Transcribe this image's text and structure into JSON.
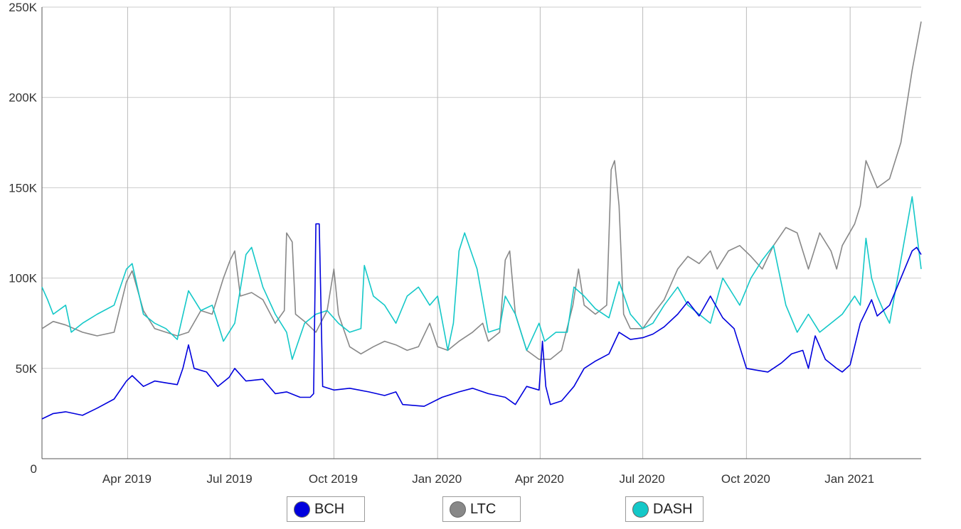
{
  "chart_data": {
    "type": "line",
    "x_ticks": [
      "Apr 2019",
      "Jul 2019",
      "Oct 2019",
      "Jan 2020",
      "Apr 2020",
      "Jul 2020",
      "Oct 2020",
      "Jan 2021"
    ],
    "y_ticks": [
      "0",
      "50K",
      "100K",
      "150K",
      "200K",
      "250K"
    ],
    "ylim": [
      0,
      250000
    ],
    "xlim": [
      "2019-01-15",
      "2021-03-05"
    ],
    "grid": true,
    "legend_position": "bottom",
    "series": [
      {
        "name": "BCH",
        "color": "#0000dd",
        "points": [
          [
            "2019-01-15",
            22000
          ],
          [
            "2019-01-25",
            25000
          ],
          [
            "2019-02-05",
            26000
          ],
          [
            "2019-02-20",
            24000
          ],
          [
            "2019-03-05",
            28000
          ],
          [
            "2019-03-20",
            33000
          ],
          [
            "2019-03-31",
            43000
          ],
          [
            "2019-04-05",
            46000
          ],
          [
            "2019-04-15",
            40000
          ],
          [
            "2019-04-25",
            43000
          ],
          [
            "2019-05-05",
            42000
          ],
          [
            "2019-05-15",
            41000
          ],
          [
            "2019-05-20",
            50000
          ],
          [
            "2019-05-25",
            63000
          ],
          [
            "2019-05-30",
            50000
          ],
          [
            "2019-06-10",
            48000
          ],
          [
            "2019-06-20",
            40000
          ],
          [
            "2019-06-30",
            45000
          ],
          [
            "2019-07-05",
            50000
          ],
          [
            "2019-07-15",
            43000
          ],
          [
            "2019-07-30",
            44000
          ],
          [
            "2019-08-10",
            36000
          ],
          [
            "2019-08-20",
            37000
          ],
          [
            "2019-09-01",
            34000
          ],
          [
            "2019-09-10",
            34000
          ],
          [
            "2019-09-13",
            36000
          ],
          [
            "2019-09-15",
            130000
          ],
          [
            "2019-09-18",
            130000
          ],
          [
            "2019-09-21",
            40000
          ],
          [
            "2019-10-01",
            38000
          ],
          [
            "2019-10-15",
            39000
          ],
          [
            "2019-11-01",
            37000
          ],
          [
            "2019-11-15",
            35000
          ],
          [
            "2019-11-25",
            37000
          ],
          [
            "2019-12-01",
            30000
          ],
          [
            "2019-12-20",
            29000
          ],
          [
            "2020-01-05",
            34000
          ],
          [
            "2020-01-20",
            37000
          ],
          [
            "2020-02-01",
            39000
          ],
          [
            "2020-02-15",
            36000
          ],
          [
            "2020-03-01",
            34000
          ],
          [
            "2020-03-10",
            30000
          ],
          [
            "2020-03-20",
            40000
          ],
          [
            "2020-03-31",
            38000
          ],
          [
            "2020-04-03",
            65000
          ],
          [
            "2020-04-06",
            40000
          ],
          [
            "2020-04-10",
            30000
          ],
          [
            "2020-04-20",
            32000
          ],
          [
            "2020-05-01",
            40000
          ],
          [
            "2020-05-10",
            50000
          ],
          [
            "2020-05-20",
            54000
          ],
          [
            "2020-06-01",
            58000
          ],
          [
            "2020-06-10",
            70000
          ],
          [
            "2020-06-20",
            66000
          ],
          [
            "2020-07-01",
            67000
          ],
          [
            "2020-07-10",
            69000
          ],
          [
            "2020-07-20",
            73000
          ],
          [
            "2020-08-01",
            80000
          ],
          [
            "2020-08-10",
            87000
          ],
          [
            "2020-08-20",
            79000
          ],
          [
            "2020-08-30",
            90000
          ],
          [
            "2020-09-10",
            78000
          ],
          [
            "2020-09-20",
            72000
          ],
          [
            "2020-09-25",
            62000
          ],
          [
            "2020-10-01",
            50000
          ],
          [
            "2020-10-10",
            49000
          ],
          [
            "2020-10-20",
            48000
          ],
          [
            "2020-11-01",
            53000
          ],
          [
            "2020-11-10",
            58000
          ],
          [
            "2020-11-20",
            60000
          ],
          [
            "2020-11-25",
            50000
          ],
          [
            "2020-12-01",
            68000
          ],
          [
            "2020-12-10",
            55000
          ],
          [
            "2020-12-20",
            50000
          ],
          [
            "2020-12-25",
            48000
          ],
          [
            "2021-01-01",
            52000
          ],
          [
            "2021-01-10",
            75000
          ],
          [
            "2021-01-20",
            88000
          ],
          [
            "2021-01-25",
            79000
          ],
          [
            "2021-02-05",
            85000
          ],
          [
            "2021-02-15",
            100000
          ],
          [
            "2021-02-25",
            115000
          ],
          [
            "2021-03-01",
            117000
          ],
          [
            "2021-03-05",
            113000
          ]
        ]
      },
      {
        "name": "LTC",
        "color": "#888888",
        "points": [
          [
            "2019-01-15",
            72000
          ],
          [
            "2019-01-25",
            76000
          ],
          [
            "2019-02-05",
            74000
          ],
          [
            "2019-02-20",
            70000
          ],
          [
            "2019-03-05",
            68000
          ],
          [
            "2019-03-20",
            70000
          ],
          [
            "2019-03-31",
            98000
          ],
          [
            "2019-04-05",
            104000
          ],
          [
            "2019-04-15",
            82000
          ],
          [
            "2019-04-25",
            72000
          ],
          [
            "2019-05-05",
            70000
          ],
          [
            "2019-05-15",
            68000
          ],
          [
            "2019-05-25",
            70000
          ],
          [
            "2019-06-05",
            82000
          ],
          [
            "2019-06-15",
            80000
          ],
          [
            "2019-06-25",
            100000
          ],
          [
            "2019-07-01",
            110000
          ],
          [
            "2019-07-05",
            115000
          ],
          [
            "2019-07-10",
            90000
          ],
          [
            "2019-07-20",
            92000
          ],
          [
            "2019-07-30",
            88000
          ],
          [
            "2019-08-10",
            75000
          ],
          [
            "2019-08-18",
            82000
          ],
          [
            "2019-08-20",
            125000
          ],
          [
            "2019-08-25",
            120000
          ],
          [
            "2019-08-28",
            80000
          ],
          [
            "2019-09-05",
            76000
          ],
          [
            "2019-09-15",
            70000
          ],
          [
            "2019-09-25",
            82000
          ],
          [
            "2019-10-01",
            105000
          ],
          [
            "2019-10-05",
            80000
          ],
          [
            "2019-10-15",
            62000
          ],
          [
            "2019-10-25",
            58000
          ],
          [
            "2019-11-05",
            62000
          ],
          [
            "2019-11-15",
            65000
          ],
          [
            "2019-11-25",
            63000
          ],
          [
            "2019-12-05",
            60000
          ],
          [
            "2019-12-15",
            62000
          ],
          [
            "2019-12-25",
            75000
          ],
          [
            "2020-01-01",
            62000
          ],
          [
            "2020-01-10",
            60000
          ],
          [
            "2020-01-20",
            65000
          ],
          [
            "2020-02-01",
            70000
          ],
          [
            "2020-02-10",
            75000
          ],
          [
            "2020-02-15",
            65000
          ],
          [
            "2020-02-25",
            70000
          ],
          [
            "2020-03-01",
            110000
          ],
          [
            "2020-03-05",
            115000
          ],
          [
            "2020-03-10",
            80000
          ],
          [
            "2020-03-20",
            60000
          ],
          [
            "2020-03-31",
            55000
          ],
          [
            "2020-04-10",
            55000
          ],
          [
            "2020-04-20",
            60000
          ],
          [
            "2020-04-30",
            85000
          ],
          [
            "2020-05-05",
            105000
          ],
          [
            "2020-05-10",
            85000
          ],
          [
            "2020-05-20",
            80000
          ],
          [
            "2020-05-30",
            85000
          ],
          [
            "2020-06-03",
            160000
          ],
          [
            "2020-06-06",
            165000
          ],
          [
            "2020-06-10",
            140000
          ],
          [
            "2020-06-14",
            80000
          ],
          [
            "2020-06-20",
            72000
          ],
          [
            "2020-07-01",
            72000
          ],
          [
            "2020-07-10",
            80000
          ],
          [
            "2020-07-20",
            88000
          ],
          [
            "2020-08-01",
            105000
          ],
          [
            "2020-08-10",
            112000
          ],
          [
            "2020-08-20",
            108000
          ],
          [
            "2020-08-30",
            115000
          ],
          [
            "2020-09-05",
            105000
          ],
          [
            "2020-09-15",
            115000
          ],
          [
            "2020-09-25",
            118000
          ],
          [
            "2020-10-05",
            112000
          ],
          [
            "2020-10-15",
            105000
          ],
          [
            "2020-10-25",
            118000
          ],
          [
            "2020-11-05",
            128000
          ],
          [
            "2020-11-15",
            125000
          ],
          [
            "2020-11-25",
            105000
          ],
          [
            "2020-12-05",
            125000
          ],
          [
            "2020-12-15",
            115000
          ],
          [
            "2020-12-20",
            105000
          ],
          [
            "2020-12-25",
            118000
          ],
          [
            "2021-01-05",
            130000
          ],
          [
            "2021-01-10",
            140000
          ],
          [
            "2021-01-15",
            165000
          ],
          [
            "2021-01-25",
            150000
          ],
          [
            "2021-02-05",
            155000
          ],
          [
            "2021-02-15",
            175000
          ],
          [
            "2021-02-25",
            215000
          ],
          [
            "2021-03-05",
            242000
          ]
        ]
      },
      {
        "name": "DASH",
        "color": "#14c8c8",
        "points": [
          [
            "2019-01-15",
            95000
          ],
          [
            "2019-01-20",
            88000
          ],
          [
            "2019-01-25",
            80000
          ],
          [
            "2019-02-05",
            85000
          ],
          [
            "2019-02-10",
            70000
          ],
          [
            "2019-02-20",
            75000
          ],
          [
            "2019-03-05",
            80000
          ],
          [
            "2019-03-20",
            85000
          ],
          [
            "2019-03-31",
            105000
          ],
          [
            "2019-04-05",
            108000
          ],
          [
            "2019-04-15",
            80000
          ],
          [
            "2019-04-25",
            75000
          ],
          [
            "2019-05-05",
            72000
          ],
          [
            "2019-05-15",
            66000
          ],
          [
            "2019-05-25",
            93000
          ],
          [
            "2019-06-05",
            82000
          ],
          [
            "2019-06-15",
            85000
          ],
          [
            "2019-06-25",
            65000
          ],
          [
            "2019-07-05",
            75000
          ],
          [
            "2019-07-15",
            113000
          ],
          [
            "2019-07-20",
            117000
          ],
          [
            "2019-07-30",
            95000
          ],
          [
            "2019-08-10",
            80000
          ],
          [
            "2019-08-20",
            70000
          ],
          [
            "2019-08-25",
            55000
          ],
          [
            "2019-09-05",
            75000
          ],
          [
            "2019-09-15",
            80000
          ],
          [
            "2019-09-25",
            82000
          ],
          [
            "2019-10-05",
            75000
          ],
          [
            "2019-10-15",
            70000
          ],
          [
            "2019-10-25",
            72000
          ],
          [
            "2019-10-28",
            107000
          ],
          [
            "2019-11-05",
            90000
          ],
          [
            "2019-11-15",
            85000
          ],
          [
            "2019-11-25",
            75000
          ],
          [
            "2019-12-05",
            90000
          ],
          [
            "2019-12-15",
            95000
          ],
          [
            "2019-12-25",
            85000
          ],
          [
            "2020-01-01",
            90000
          ],
          [
            "2020-01-10",
            60000
          ],
          [
            "2020-01-15",
            75000
          ],
          [
            "2020-01-20",
            115000
          ],
          [
            "2020-01-25",
            125000
          ],
          [
            "2020-02-05",
            105000
          ],
          [
            "2020-02-15",
            70000
          ],
          [
            "2020-02-25",
            72000
          ],
          [
            "2020-03-01",
            90000
          ],
          [
            "2020-03-10",
            80000
          ],
          [
            "2020-03-20",
            60000
          ],
          [
            "2020-03-31",
            75000
          ],
          [
            "2020-04-05",
            65000
          ],
          [
            "2020-04-15",
            70000
          ],
          [
            "2020-04-25",
            70000
          ],
          [
            "2020-05-01",
            95000
          ],
          [
            "2020-05-10",
            90000
          ],
          [
            "2020-05-20",
            83000
          ],
          [
            "2020-06-01",
            78000
          ],
          [
            "2020-06-10",
            98000
          ],
          [
            "2020-06-20",
            80000
          ],
          [
            "2020-07-01",
            72000
          ],
          [
            "2020-07-10",
            75000
          ],
          [
            "2020-07-20",
            85000
          ],
          [
            "2020-08-01",
            95000
          ],
          [
            "2020-08-10",
            85000
          ],
          [
            "2020-08-20",
            80000
          ],
          [
            "2020-08-30",
            75000
          ],
          [
            "2020-09-10",
            100000
          ],
          [
            "2020-09-20",
            90000
          ],
          [
            "2020-09-25",
            85000
          ],
          [
            "2020-10-05",
            100000
          ],
          [
            "2020-10-15",
            110000
          ],
          [
            "2020-10-25",
            118000
          ],
          [
            "2020-11-05",
            85000
          ],
          [
            "2020-11-15",
            70000
          ],
          [
            "2020-11-25",
            80000
          ],
          [
            "2020-12-05",
            70000
          ],
          [
            "2020-12-15",
            75000
          ],
          [
            "2020-12-25",
            80000
          ],
          [
            "2021-01-05",
            90000
          ],
          [
            "2021-01-10",
            85000
          ],
          [
            "2021-01-15",
            122000
          ],
          [
            "2021-01-20",
            100000
          ],
          [
            "2021-01-25",
            90000
          ],
          [
            "2021-02-01",
            80000
          ],
          [
            "2021-02-05",
            75000
          ],
          [
            "2021-02-15",
            110000
          ],
          [
            "2021-02-25",
            145000
          ],
          [
            "2021-03-05",
            105000
          ]
        ]
      }
    ]
  }
}
